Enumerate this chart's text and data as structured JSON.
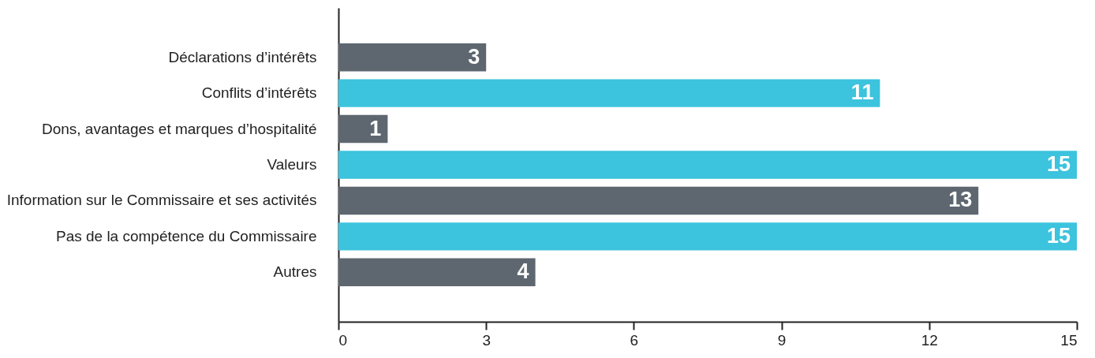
{
  "chart_data": {
    "type": "bar",
    "orientation": "horizontal",
    "categories": [
      "Déclarations d’intérêts",
      "Conflits d’intérêts",
      "Dons, avantages et marques d’hospitalité",
      "Valeurs",
      "Information sur le Commissaire et ses activités",
      "Pas de la compétence du Commissaire",
      "Autres"
    ],
    "values": [
      3,
      11,
      1,
      15,
      13,
      15,
      4
    ],
    "colors": [
      "#5e6770",
      "#3cc3dd",
      "#5e6770",
      "#3cc3dd",
      "#5e6770",
      "#3cc3dd",
      "#5e6770"
    ],
    "xlim": [
      0,
      15
    ],
    "xticks": [
      0,
      3,
      6,
      9,
      12,
      15
    ],
    "data_labels": true,
    "grid": false
  }
}
